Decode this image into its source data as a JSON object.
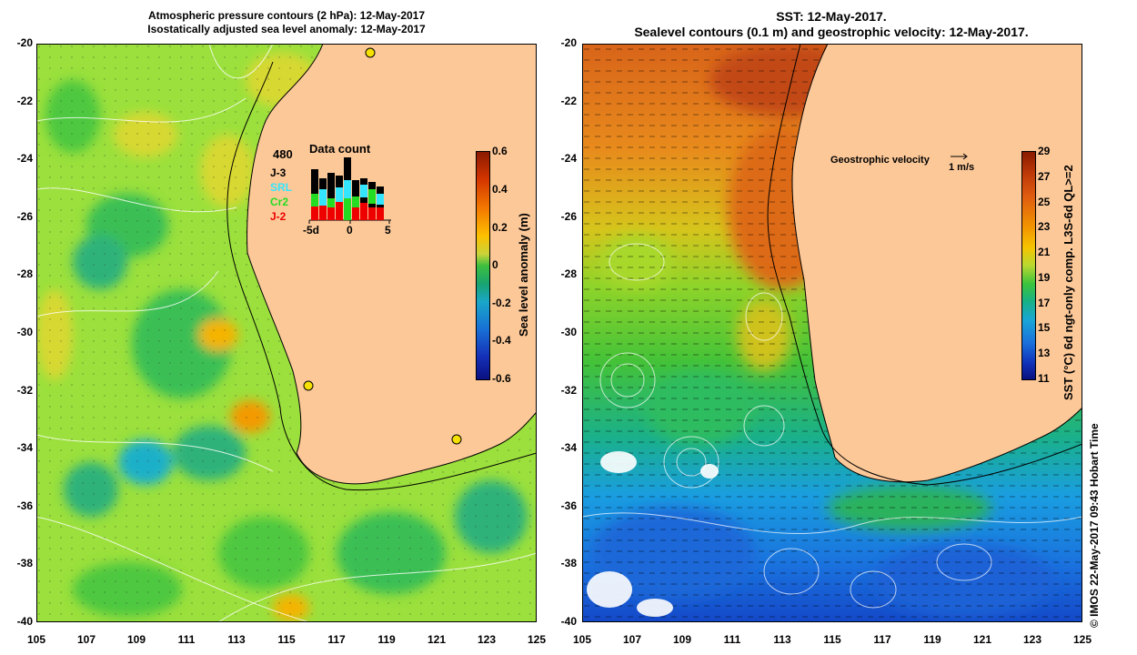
{
  "left_panel": {
    "title_line1": "Atmospheric pressure contours (2 hPa): 12-May-2017",
    "title_line2": "Isostatically adjusted sea level anomaly: 12-May-2017",
    "colorbar_title": "Sea level anomaly (m)",
    "colorbar_ticks": [
      "0.6",
      "0.4",
      "0.2",
      "0",
      "-0.2",
      "-0.4",
      "-0.6"
    ],
    "data_count": {
      "title": "Data count",
      "max_label": "480",
      "x_ticks": [
        "-5d",
        "0",
        "5"
      ],
      "satellites": [
        {
          "label": "J-3",
          "color": "#000000"
        },
        {
          "label": "SRL",
          "color": "#33e5ff"
        },
        {
          "label": "Cr2",
          "color": "#22dd22"
        },
        {
          "label": "J-2",
          "color": "#ee0000"
        }
      ]
    }
  },
  "right_panel": {
    "title_line1": "SST: 12-May-2017.",
    "title_line2": "Sealevel contours (0.1 m) and geostrophic velocity: 12-May-2017.",
    "colorbar_title": "SST (°C) 6d ngt-only comp. L3S-6d QL>=2",
    "colorbar_ticks": [
      "29",
      "27",
      "25",
      "23",
      "21",
      "19",
      "17",
      "15",
      "13",
      "11"
    ],
    "velocity_label": "Geostrophic velocity",
    "velocity_scale": "1 m/s"
  },
  "axes": {
    "lat_ticks": [
      "-20",
      "-22",
      "-24",
      "-26",
      "-28",
      "-30",
      "-32",
      "-34",
      "-36",
      "-38",
      "-40"
    ],
    "lon_ticks": [
      "105",
      "107",
      "109",
      "111",
      "113",
      "115",
      "117",
      "119",
      "121",
      "123",
      "125"
    ]
  },
  "credit": "© IMOS 22-May-2017 09:43 Hobart Time",
  "colors": {
    "land": "#fcc898",
    "ocean_green": "#8edb3a",
    "sst_warm": "#e07a1e",
    "sst_cold": "#1a8ee0"
  }
}
